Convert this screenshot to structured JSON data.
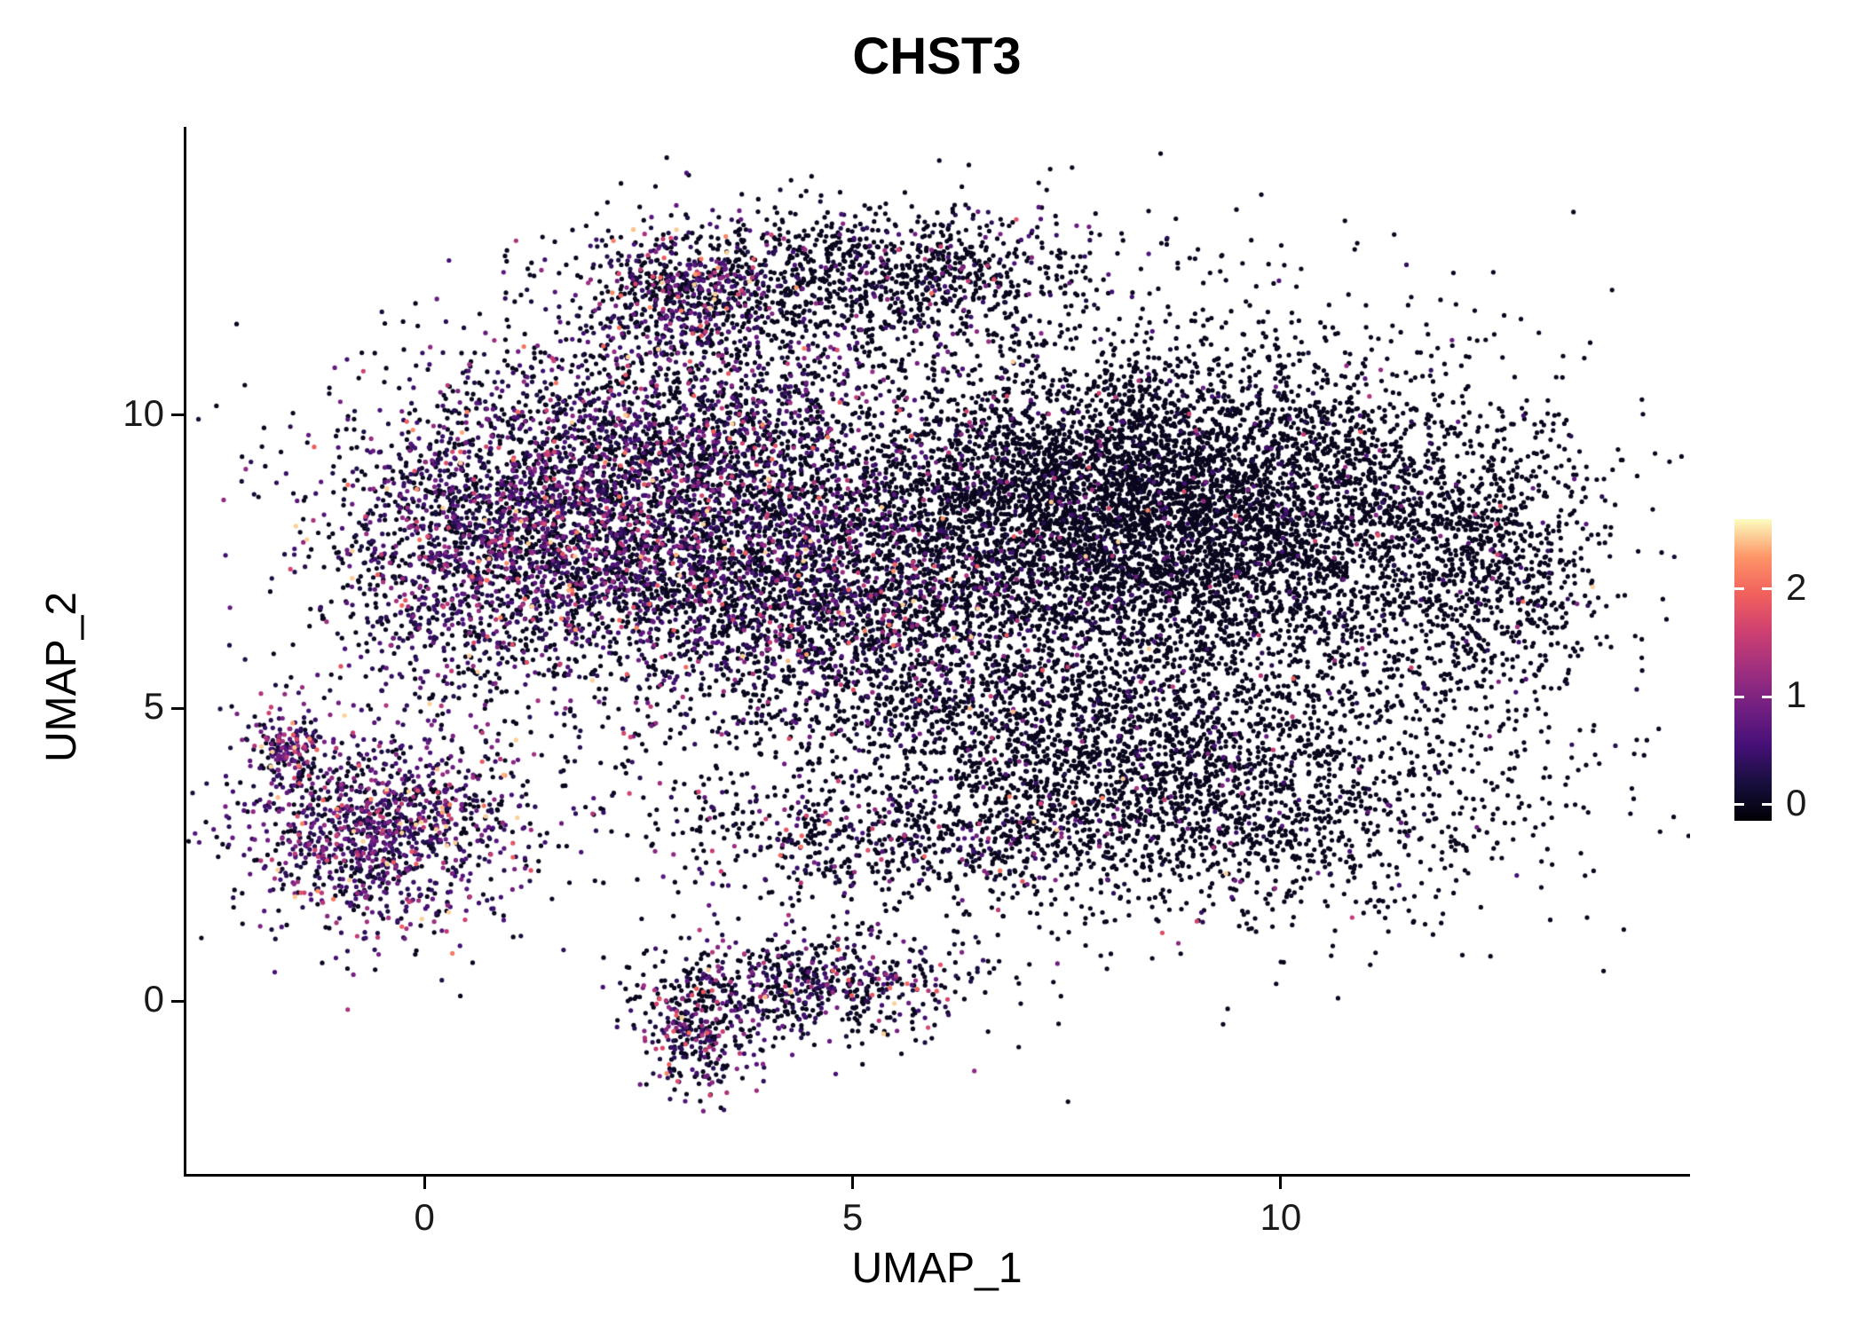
{
  "chart_data": {
    "type": "scatter",
    "title": "CHST3",
    "xlabel": "UMAP_1",
    "ylabel": "UMAP_2",
    "xlim": [
      -2.78,
      14.78
    ],
    "ylim": [
      -2.95,
      14.92
    ],
    "x_ticks": [
      0,
      5,
      10
    ],
    "y_ticks": [
      0,
      5,
      10
    ],
    "grid": false,
    "legend_position": "right",
    "point_radius": 2.6,
    "seed": 42,
    "approx_total_points": 23290,
    "color_scale": {
      "name": "magma",
      "stops": [
        "#000004",
        "#180f3e",
        "#451077",
        "#721f81",
        "#9f2f7f",
        "#cd4071",
        "#f1605d",
        "#fd9567",
        "#fcfdbf"
      ],
      "domain": [
        -0.15,
        2.65
      ],
      "legend_ticks": [
        0,
        1,
        2
      ],
      "expression_cap": 2.5
    },
    "clusters": [
      {
        "name": "left-lobe",
        "cx": 1.0,
        "cy": 7.9,
        "sx": 1.1,
        "sy": 1.3,
        "n": 2400,
        "frac": 0.55,
        "scale": 0.5
      },
      {
        "name": "upper-mid-lobe",
        "cx": 3.3,
        "cy": 9.2,
        "sx": 1.3,
        "sy": 1.4,
        "n": 2600,
        "frac": 0.42,
        "scale": 0.5
      },
      {
        "name": "mid-lobe",
        "cx": 4.5,
        "cy": 6.9,
        "sx": 1.4,
        "sy": 1.1,
        "n": 2000,
        "frac": 0.35,
        "scale": 0.5
      },
      {
        "name": "top-ridge",
        "cx": 5.2,
        "cy": 12.4,
        "sx": 1.4,
        "sy": 0.6,
        "n": 1100,
        "frac": 0.18,
        "scale": 0.45
      },
      {
        "name": "top-left-spur",
        "cx": 3.0,
        "cy": 12.1,
        "sx": 0.55,
        "sy": 0.55,
        "n": 450,
        "frac": 0.6,
        "scale": 0.7
      },
      {
        "name": "right-core",
        "cx": 7.8,
        "cy": 8.5,
        "sx": 1.3,
        "sy": 1.3,
        "n": 3800,
        "frac": 0.06,
        "scale": 0.5
      },
      {
        "name": "right-east",
        "cx": 10.3,
        "cy": 8.2,
        "sx": 1.4,
        "sy": 1.5,
        "n": 2600,
        "frac": 0.05,
        "scale": 0.5
      },
      {
        "name": "right-knob",
        "cx": 12.5,
        "cy": 7.2,
        "sx": 0.6,
        "sy": 1.1,
        "n": 600,
        "frac": 0.05,
        "scale": 0.5
      },
      {
        "name": "lower-right",
        "cx": 8.8,
        "cy": 3.6,
        "sx": 1.9,
        "sy": 1.1,
        "n": 2400,
        "frac": 0.07,
        "scale": 0.5
      },
      {
        "name": "bridge",
        "cx": 5.3,
        "cy": 2.8,
        "sx": 1.6,
        "sy": 0.55,
        "n": 550,
        "frac": 0.3,
        "scale": 0.6
      },
      {
        "name": "left-cluster",
        "cx": -0.5,
        "cy": 2.9,
        "sx": 0.85,
        "sy": 0.85,
        "n": 1300,
        "frac": 0.7,
        "scale": 0.55
      },
      {
        "name": "left-tip",
        "cx": -1.6,
        "cy": 4.35,
        "sx": 0.22,
        "sy": 0.3,
        "n": 140,
        "frac": 0.8,
        "scale": 0.7
      },
      {
        "name": "bottom-cluster",
        "cx": 4.5,
        "cy": 0.3,
        "sx": 0.9,
        "sy": 0.45,
        "n": 650,
        "frac": 0.45,
        "scale": 0.55
      },
      {
        "name": "bottom-tail",
        "cx": 3.2,
        "cy": -0.6,
        "sx": 0.35,
        "sy": 0.5,
        "n": 300,
        "frac": 0.5,
        "scale": 0.55
      },
      {
        "name": "diffuse-fill",
        "cx": 6.2,
        "cy": 7.5,
        "sx": 3.2,
        "sy": 2.6,
        "n": 1600,
        "frac": 0.12,
        "scale": 0.5
      },
      {
        "name": "lower-mid-fill",
        "cx": 6.8,
        "cy": 5.2,
        "sx": 1.6,
        "sy": 0.9,
        "n": 800,
        "frac": 0.1,
        "scale": 0.5
      }
    ]
  }
}
